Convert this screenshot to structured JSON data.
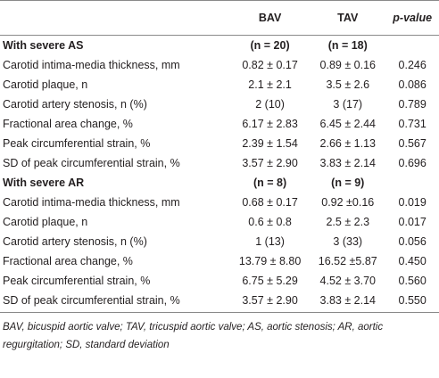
{
  "table": {
    "columns": [
      "BAV",
      "TAV",
      "p-value"
    ],
    "sections": [
      {
        "title": "With severe AS",
        "counts": [
          "(n = 20)",
          "(n = 18)"
        ],
        "rows": [
          [
            "Carotid intima-media thickness, mm",
            "0.82 ± 0.17",
            "0.89 ± 0.16",
            "0.246"
          ],
          [
            "Carotid plaque, n",
            "2.1 ± 2.1",
            "3.5 ± 2.6",
            "0.086"
          ],
          [
            "Carotid artery stenosis, n (%)",
            "2 (10)",
            "3 (17)",
            "0.789"
          ],
          [
            "Fractional area change, %",
            "6.17 ± 2.83",
            "6.45 ± 2.44",
            "0.731"
          ],
          [
            "Peak circumferential strain, %",
            "2.39 ± 1.54",
            "2.66 ± 1.13",
            "0.567"
          ],
          [
            "SD of peak circumferential strain, %",
            "3.57 ± 2.90",
            "3.83 ± 2.14",
            "0.696"
          ]
        ]
      },
      {
        "title": "With severe AR",
        "counts": [
          "(n = 8)",
          "(n = 9)"
        ],
        "rows": [
          [
            "Carotid intima-media thickness, mm",
            "0.68 ± 0.17",
            "0.92 ±0.16",
            "0.019"
          ],
          [
            "Carotid plaque, n",
            "0.6 ± 0.8",
            "2.5 ± 2.3",
            "0.017"
          ],
          [
            "Carotid artery stenosis, n (%)",
            "1 (13)",
            "3 (33)",
            "0.056"
          ],
          [
            "Fractional area change, %",
            "13.79 ± 8.80",
            "16.52 ±5.87",
            "0.450"
          ],
          [
            "Peak circumferential strain, %",
            "6.75 ± 5.29",
            "4.52 ± 3.70",
            "0.560"
          ],
          [
            "SD of peak circumferential strain, %",
            "3.57 ± 2.90",
            "3.83 ± 2.14",
            "0.550"
          ]
        ]
      }
    ],
    "footnote": "BAV, bicuspid aortic valve; TAV, tricuspid aortic valve; AS, aortic stenosis; AR, aortic regurgitation; SD, standard deviation"
  }
}
